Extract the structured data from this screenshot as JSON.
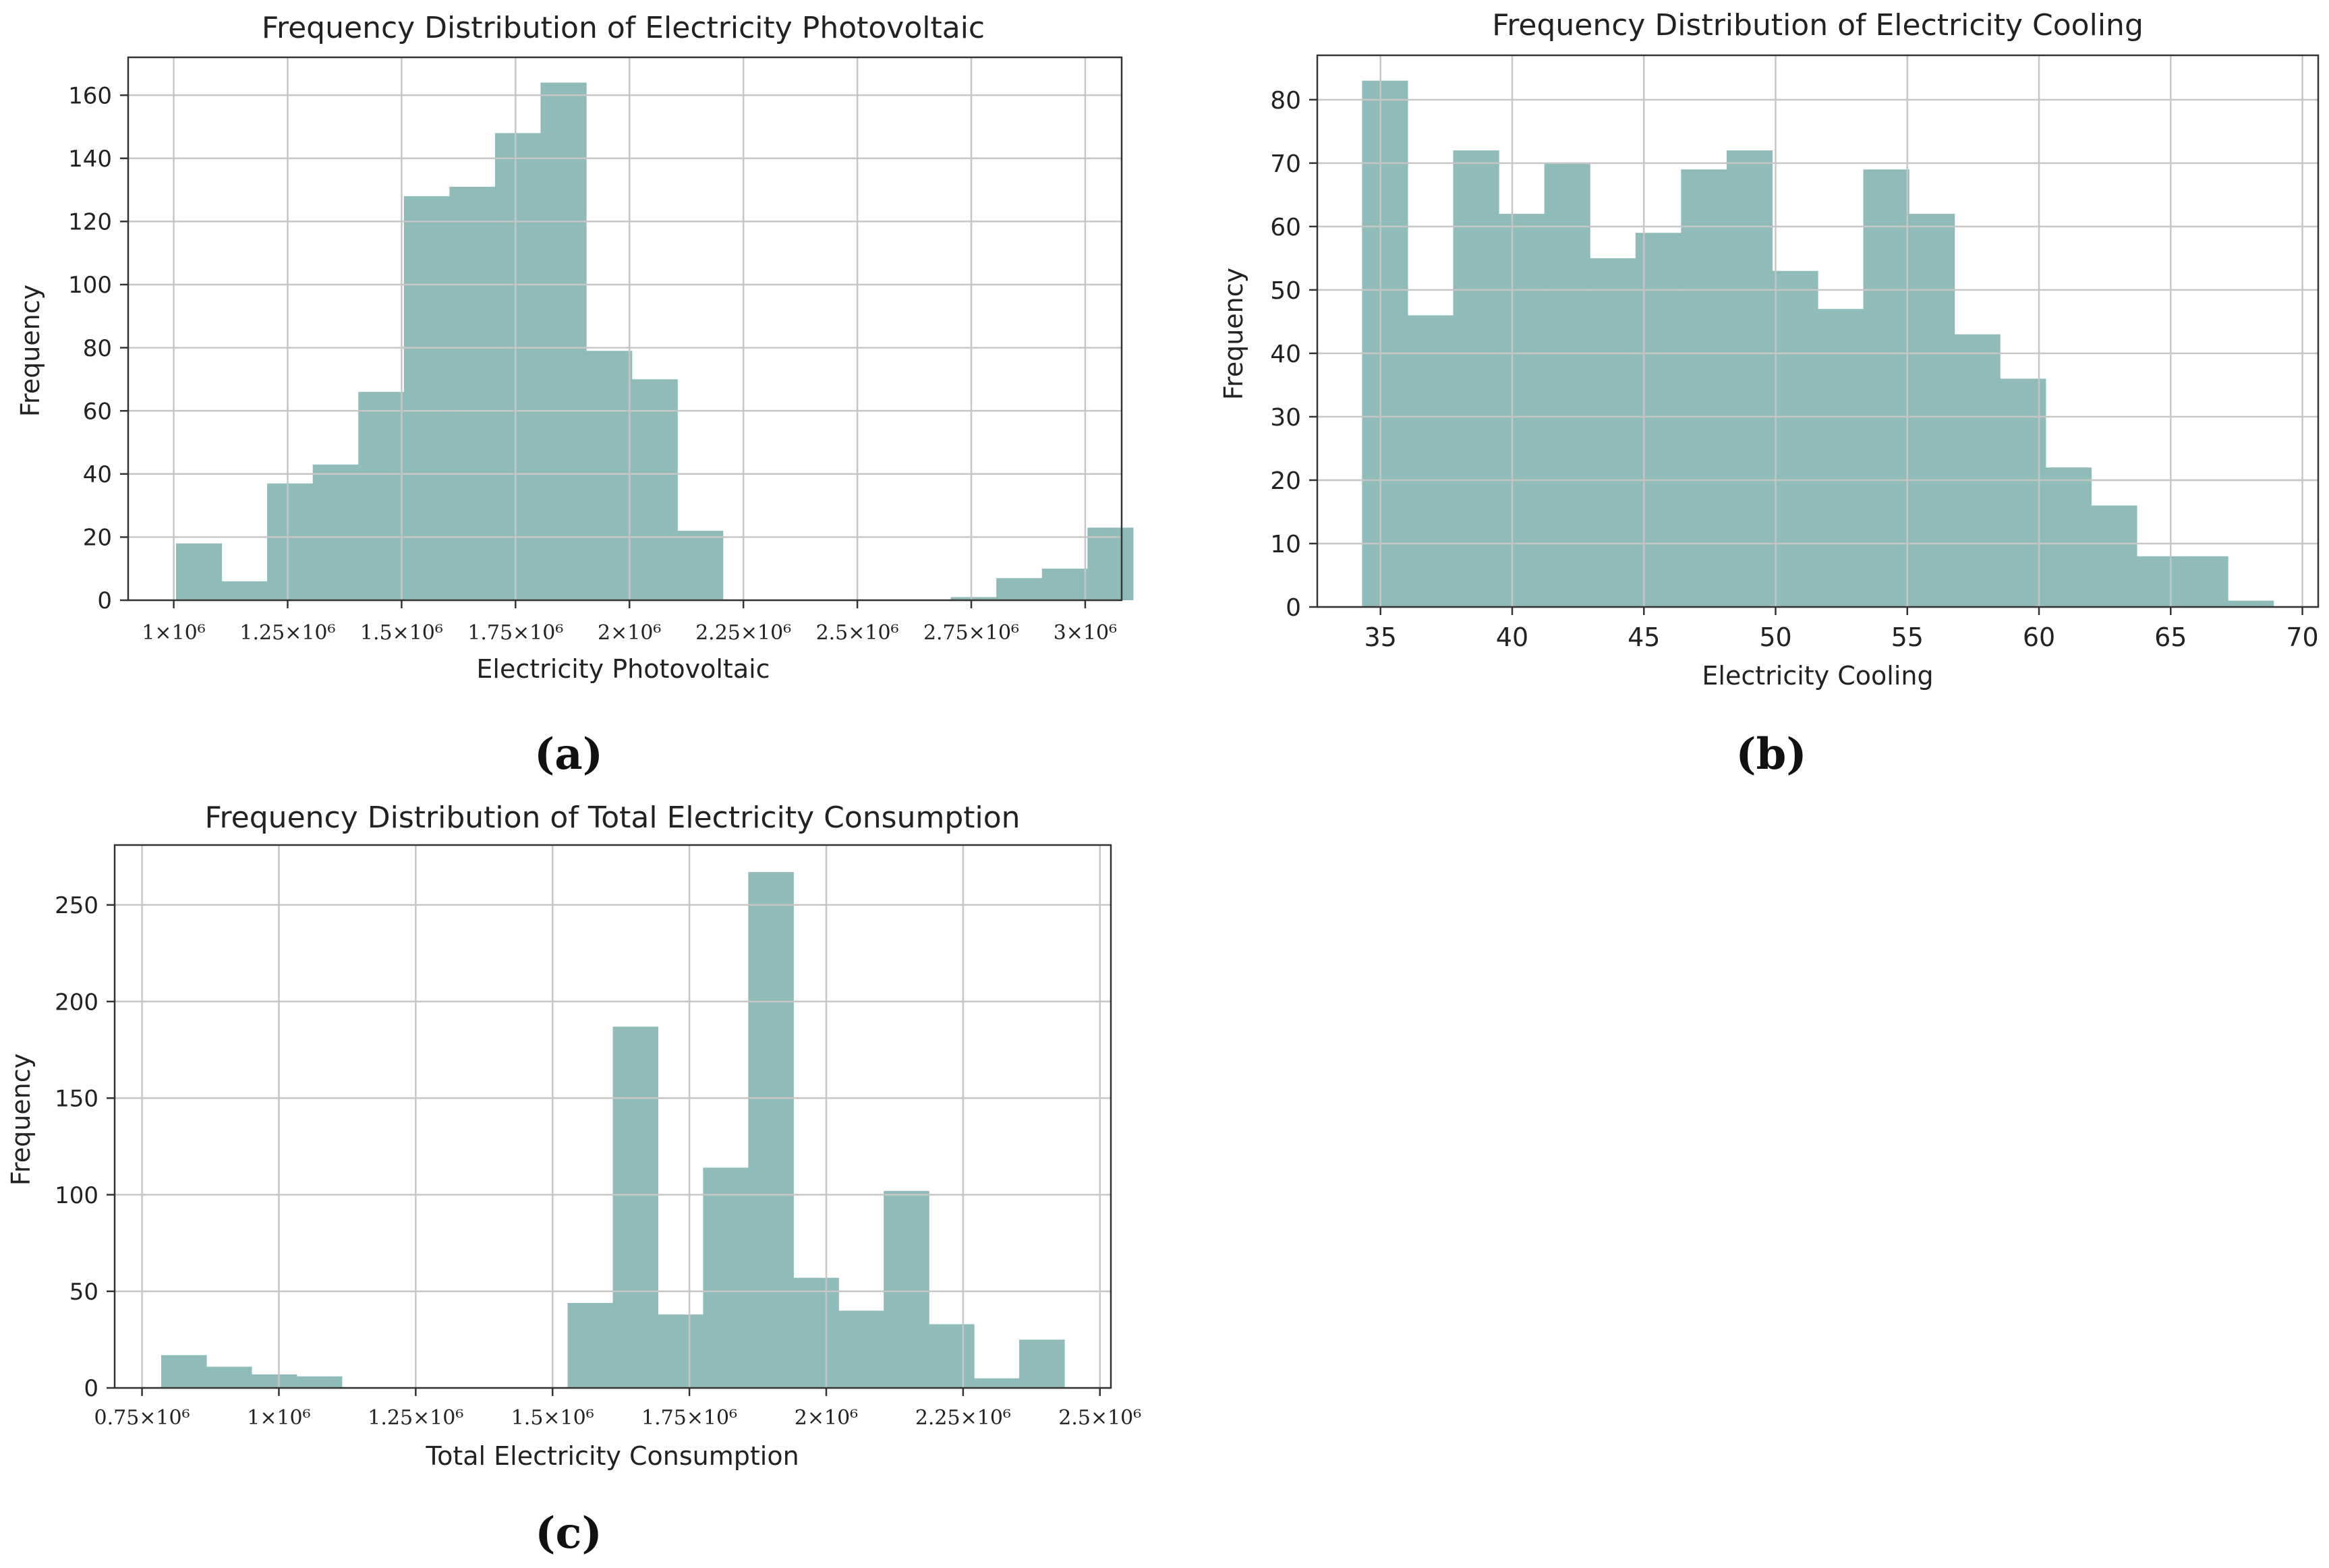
{
  "bar_color": "#8fbbbb",
  "grid_color": "#c6c6c6",
  "chart_data": [
    {
      "type": "bar",
      "subtype": "histogram",
      "title": "Frequency Distribution of Electricity Photovoltaic",
      "xlabel": "Electricity Photovoltaic",
      "ylabel": "Frequency",
      "caption": "(a)",
      "xlim": [
        900000,
        3080000
      ],
      "ylim": [
        0,
        172
      ],
      "grid": true,
      "bin_start": 1005000,
      "bin_width": 100000,
      "values": [
        18,
        6,
        37,
        43,
        66,
        128,
        131,
        148,
        164,
        79,
        70,
        22,
        0,
        0,
        0,
        0,
        0,
        1,
        7,
        10,
        23
      ],
      "x_ticks": [
        {
          "value": 1000000,
          "label": "1×10⁶"
        },
        {
          "value": 1250000,
          "label": "1.25×10⁶"
        },
        {
          "value": 1500000,
          "label": "1.5×10⁶"
        },
        {
          "value": 1750000,
          "label": "1.75×10⁶"
        },
        {
          "value": 2000000,
          "label": "2×10⁶"
        },
        {
          "value": 2250000,
          "label": "2.25×10⁶"
        },
        {
          "value": 2500000,
          "label": "2.5×10⁶"
        },
        {
          "value": 2750000,
          "label": "2.75×10⁶"
        },
        {
          "value": 3000000,
          "label": "3×10⁶"
        }
      ],
      "y_ticks": [
        {
          "value": 0,
          "label": "0"
        },
        {
          "value": 20,
          "label": "20"
        },
        {
          "value": 40,
          "label": "40"
        },
        {
          "value": 60,
          "label": "60"
        },
        {
          "value": 80,
          "label": "80"
        },
        {
          "value": 100,
          "label": "100"
        },
        {
          "value": 120,
          "label": "120"
        },
        {
          "value": 140,
          "label": "140"
        },
        {
          "value": 160,
          "label": "160"
        }
      ]
    },
    {
      "type": "bar",
      "subtype": "histogram",
      "title": "Frequency Distribution of Electricity Cooling",
      "xlabel": "Electricity Cooling",
      "ylabel": "Frequency",
      "caption": "(b)",
      "xlim": [
        32.6,
        70.6
      ],
      "ylim": [
        0,
        87
      ],
      "grid": true,
      "bin_start": 34.3,
      "bin_width": 1.73,
      "values": [
        83,
        46,
        72,
        62,
        70,
        55,
        59,
        69,
        72,
        53,
        47,
        69,
        62,
        43,
        36,
        22,
        16,
        8,
        8,
        1
      ],
      "x_ticks": [
        {
          "value": 35,
          "label": "35"
        },
        {
          "value": 40,
          "label": "40"
        },
        {
          "value": 45,
          "label": "45"
        },
        {
          "value": 50,
          "label": "50"
        },
        {
          "value": 55,
          "label": "55"
        },
        {
          "value": 60,
          "label": "60"
        },
        {
          "value": 65,
          "label": "65"
        },
        {
          "value": 70,
          "label": "70"
        }
      ],
      "y_ticks": [
        {
          "value": 0,
          "label": "0"
        },
        {
          "value": 10,
          "label": "10"
        },
        {
          "value": 20,
          "label": "20"
        },
        {
          "value": 30,
          "label": "30"
        },
        {
          "value": 40,
          "label": "40"
        },
        {
          "value": 50,
          "label": "50"
        },
        {
          "value": 60,
          "label": "60"
        },
        {
          "value": 70,
          "label": "70"
        },
        {
          "value": 80,
          "label": "80"
        }
      ]
    },
    {
      "type": "bar",
      "subtype": "histogram",
      "title": "Frequency Distribution of Total Electricity Consumption",
      "xlabel": "Total Electricity Consumption",
      "ylabel": "Frequency",
      "caption": "(c)",
      "xlim": [
        700000,
        2520000
      ],
      "ylim": [
        0,
        281
      ],
      "grid": true,
      "bin_start": 785000,
      "bin_width": 82500,
      "values": [
        17,
        11,
        7,
        6,
        0,
        0,
        0,
        0,
        0,
        44,
        187,
        38,
        114,
        267,
        57,
        40,
        102,
        33,
        5,
        25
      ],
      "x_ticks": [
        {
          "value": 750000,
          "label": "0.75×10⁶"
        },
        {
          "value": 1000000,
          "label": "1×10⁶"
        },
        {
          "value": 1250000,
          "label": "1.25×10⁶"
        },
        {
          "value": 1500000,
          "label": "1.5×10⁶"
        },
        {
          "value": 1750000,
          "label": "1.75×10⁶"
        },
        {
          "value": 2000000,
          "label": "2×10⁶"
        },
        {
          "value": 2250000,
          "label": "2.25×10⁶"
        },
        {
          "value": 2500000,
          "label": "2.5×10⁶"
        }
      ],
      "y_ticks": [
        {
          "value": 0,
          "label": "0"
        },
        {
          "value": 50,
          "label": "50"
        },
        {
          "value": 100,
          "label": "100"
        },
        {
          "value": 150,
          "label": "150"
        },
        {
          "value": 200,
          "label": "200"
        },
        {
          "value": 250,
          "label": "250"
        }
      ]
    }
  ]
}
